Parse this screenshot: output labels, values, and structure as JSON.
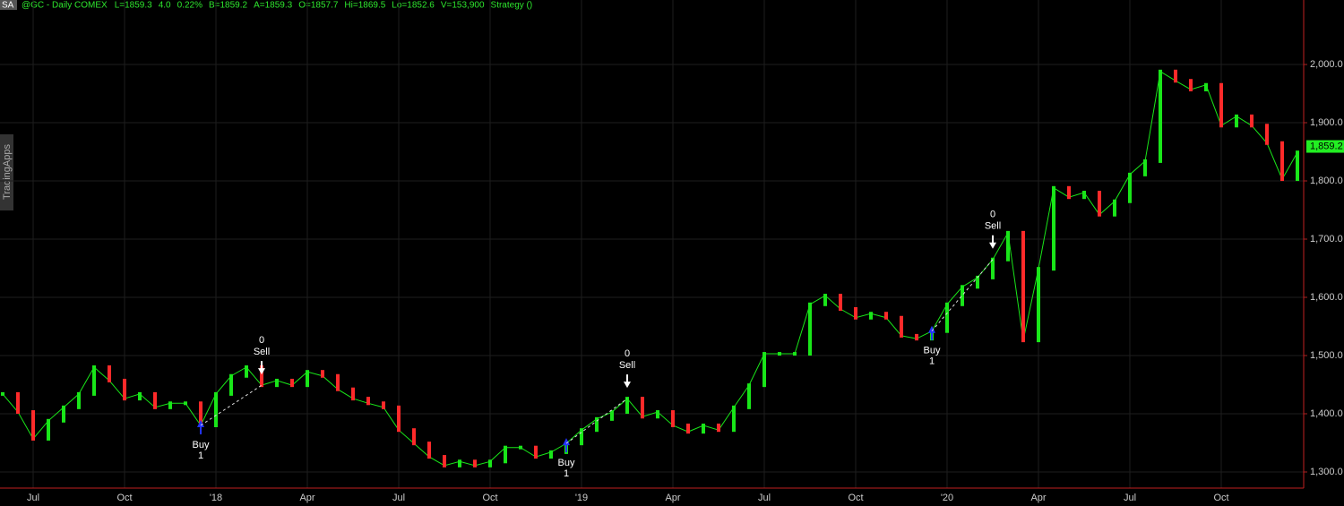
{
  "header": {
    "symbol_box": "SA",
    "title": "@GC - Daily  COMEX",
    "items": [
      "L=1859.3",
      "4.0",
      "0.22%",
      "B=1859.2",
      "A=1859.3",
      "O=1857.7",
      "Hi=1869.5",
      "Lo=1852.6",
      "V=153,900",
      "Strategy ()"
    ]
  },
  "watermark": "TradingApps",
  "chart_data": {
    "type": "line",
    "up_color": "#19e619",
    "down_color": "#ff2a2a",
    "categories": [
      null,
      null,
      "Jul",
      null,
      null,
      null,
      null,
      null,
      "Oct",
      null,
      null,
      null,
      null,
      null,
      "'18",
      null,
      null,
      null,
      null,
      null,
      "Apr",
      null,
      null,
      null,
      null,
      null,
      "Jul",
      null,
      null,
      null,
      null,
      null,
      "Oct",
      null,
      null,
      null,
      null,
      null,
      "'19",
      null,
      null,
      null,
      null,
      null,
      "Apr",
      null,
      null,
      null,
      null,
      null,
      "Jul",
      null,
      null,
      null,
      null,
      null,
      "Oct",
      null,
      null,
      null,
      null,
      null,
      "'20",
      null,
      null,
      null,
      null,
      null,
      "Apr",
      null,
      null,
      null,
      null,
      null,
      "Jul",
      null,
      null,
      null,
      null,
      null,
      "Oct",
      null,
      null,
      null,
      null,
      null
    ],
    "values": [
      1434,
      1403,
      1357,
      1388,
      1411,
      1434,
      1480,
      1457,
      1426,
      1434,
      1411,
      1418,
      1418,
      1380,
      1434,
      1465,
      1480,
      1449,
      1457,
      1449,
      1472,
      1465,
      1442,
      1426,
      1418,
      1411,
      1372,
      1349,
      1326,
      1311,
      1318,
      1311,
      1318,
      1342,
      1342,
      1326,
      1334,
      1349,
      1372,
      1391,
      1403,
      1426,
      1395,
      1403,
      1380,
      1369,
      1380,
      1372,
      1411,
      1449,
      1503,
      1503,
      1503,
      1588,
      1603,
      1580,
      1565,
      1572,
      1565,
      1534,
      1529,
      1542,
      1588,
      1618,
      1634,
      1665,
      1711,
      1526,
      1649,
      1788,
      1772,
      1780,
      1742,
      1765,
      1811,
      1834,
      1988,
      1972,
      1957,
      1965,
      1895,
      1911,
      1895,
      1865,
      1803,
      1849
    ],
    "signals": [
      null,
      null,
      null,
      null,
      null,
      null,
      null,
      null,
      null,
      null,
      null,
      null,
      null,
      {
        "action": "Buy",
        "quantity": 1
      },
      null,
      null,
      null,
      {
        "action": "Sell",
        "quantity": 0
      },
      null,
      null,
      null,
      null,
      null,
      null,
      null,
      null,
      null,
      null,
      null,
      null,
      null,
      null,
      null,
      null,
      null,
      null,
      null,
      {
        "action": "Buy",
        "quantity": 1
      },
      null,
      null,
      null,
      {
        "action": "Sell",
        "quantity": 0
      },
      null,
      null,
      null,
      null,
      null,
      null,
      null,
      null,
      null,
      null,
      null,
      null,
      null,
      null,
      null,
      null,
      null,
      null,
      null,
      {
        "action": "Buy",
        "quantity": 1
      },
      null,
      null,
      null,
      {
        "action": "Sell",
        "quantity": 0
      },
      null,
      null,
      null,
      null,
      null,
      null,
      null,
      null,
      null,
      null,
      null,
      null,
      null,
      null,
      null,
      null,
      null,
      null,
      null,
      null
    ],
    "ylim": [
      1272.3,
      2110.8
    ],
    "yticks": [
      {
        "value": 1300,
        "label": "1,300.0"
      },
      {
        "value": 1400,
        "label": "1,400.0"
      },
      {
        "value": 1500,
        "label": "1,500.0"
      },
      {
        "value": 1600,
        "label": "1,600.0"
      },
      {
        "value": 1700,
        "label": "1,700.0"
      },
      {
        "value": 1800,
        "label": "1,800.0"
      },
      {
        "value": 1900,
        "label": "1,900.0"
      },
      {
        "value": 2000,
        "label": "2,000.0"
      }
    ],
    "last_price": {
      "value": 1859.2,
      "label": "1,859.2"
    },
    "grid": true
  }
}
